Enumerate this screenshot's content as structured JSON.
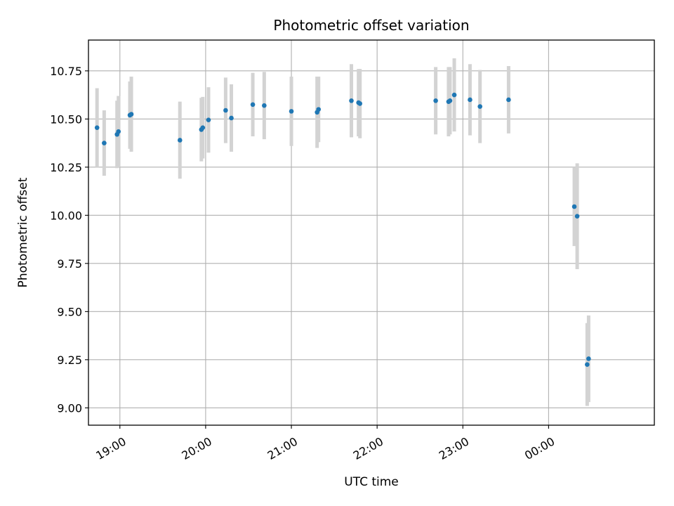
{
  "chart_data": {
    "type": "scatter",
    "title": "Photometric offset variation",
    "xlabel": "UTC time",
    "ylabel": "Photometric offset",
    "grid": true,
    "x_axis_type": "time",
    "xlim": [
      "18:38",
      "01:14"
    ],
    "ylim": [
      8.91,
      10.91
    ],
    "x_ticks": [
      {
        "time": "19:00",
        "label": "19:00"
      },
      {
        "time": "20:00",
        "label": "20:00"
      },
      {
        "time": "21:00",
        "label": "21:00"
      },
      {
        "time": "22:00",
        "label": "22:00"
      },
      {
        "time": "23:00",
        "label": "23:00"
      },
      {
        "time": "00:00",
        "label": "00:00"
      }
    ],
    "y_ticks": [
      {
        "value": 9.0,
        "label": "9.00"
      },
      {
        "value": 9.25,
        "label": "9.25"
      },
      {
        "value": 9.5,
        "label": "9.50"
      },
      {
        "value": 9.75,
        "label": "9.75"
      },
      {
        "value": 10.0,
        "label": "10.00"
      },
      {
        "value": 10.25,
        "label": "10.25"
      },
      {
        "value": 10.5,
        "label": "10.50"
      },
      {
        "value": 10.75,
        "label": "10.75"
      }
    ],
    "colors": {
      "marker": "#1f77b4",
      "errorbar": "#d3d3d3",
      "grid": "#b0b0b0"
    },
    "series": [
      {
        "points": [
          {
            "t": "18:44",
            "y": 10.455,
            "err": 0.205
          },
          {
            "t": "18:49",
            "y": 10.375,
            "err": 0.17
          },
          {
            "t": "18:58",
            "y": 10.42,
            "err": 0.175
          },
          {
            "t": "18:59",
            "y": 10.435,
            "err": 0.185
          },
          {
            "t": "19:07",
            "y": 10.52,
            "err": 0.175
          },
          {
            "t": "19:08",
            "y": 10.525,
            "err": 0.195
          },
          {
            "t": "19:42",
            "y": 10.39,
            "err": 0.2
          },
          {
            "t": "19:57",
            "y": 10.445,
            "err": 0.165
          },
          {
            "t": "19:58",
            "y": 10.455,
            "err": 0.16
          },
          {
            "t": "20:02",
            "y": 10.495,
            "err": 0.17
          },
          {
            "t": "20:14",
            "y": 10.545,
            "err": 0.17
          },
          {
            "t": "20:18",
            "y": 10.505,
            "err": 0.175
          },
          {
            "t": "20:33",
            "y": 10.575,
            "err": 0.165
          },
          {
            "t": "20:41",
            "y": 10.57,
            "err": 0.175
          },
          {
            "t": "21:00",
            "y": 10.54,
            "err": 0.18
          },
          {
            "t": "21:18",
            "y": 10.535,
            "err": 0.185
          },
          {
            "t": "21:19",
            "y": 10.55,
            "err": 0.17
          },
          {
            "t": "21:42",
            "y": 10.595,
            "err": 0.19
          },
          {
            "t": "21:47",
            "y": 10.585,
            "err": 0.175
          },
          {
            "t": "21:48",
            "y": 10.58,
            "err": 0.18
          },
          {
            "t": "22:41",
            "y": 10.595,
            "err": 0.175
          },
          {
            "t": "22:50",
            "y": 10.59,
            "err": 0.18
          },
          {
            "t": "22:51",
            "y": 10.595,
            "err": 0.175
          },
          {
            "t": "22:54",
            "y": 10.625,
            "err": 0.19
          },
          {
            "t": "23:05",
            "y": 10.6,
            "err": 0.185
          },
          {
            "t": "23:12",
            "y": 10.565,
            "err": 0.19
          },
          {
            "t": "23:32",
            "y": 10.6,
            "err": 0.175
          },
          {
            "t": "00:18",
            "y": 10.045,
            "err": 0.205
          },
          {
            "t": "00:20",
            "y": 9.995,
            "err": 0.275
          },
          {
            "t": "00:27",
            "y": 9.225,
            "err": 0.215
          },
          {
            "t": "00:28",
            "y": 9.255,
            "err": 0.225
          }
        ]
      }
    ]
  }
}
